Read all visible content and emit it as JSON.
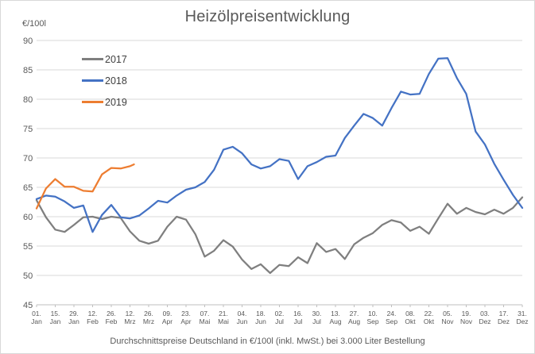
{
  "chart_data": {
    "type": "line",
    "title": "Heizölpreisentwicklung",
    "ylabel": "€/100l",
    "caption": "Durchschnittspreise Deutschland in €/100l (inkl. MwSt.) bei 3.000 Liter Bestellung",
    "ylim": [
      45,
      90
    ],
    "xlim": [
      1,
      365
    ],
    "yticks": [
      45,
      50,
      55,
      60,
      65,
      70,
      75,
      80,
      85,
      90
    ],
    "grid": "horizontal",
    "legend_position": "top-left-inside",
    "x_unit": "day_of_year",
    "theme": {
      "grid": "#D9D9D9",
      "axis": "#BFBFBF",
      "text": "#595959"
    },
    "xticks": [
      {
        "d": 1,
        "l1": "01.",
        "l2": "Jan"
      },
      {
        "d": 15,
        "l1": "15.",
        "l2": "Jan"
      },
      {
        "d": 29,
        "l1": "29.",
        "l2": "Jan"
      },
      {
        "d": 43,
        "l1": "12.",
        "l2": "Feb"
      },
      {
        "d": 57,
        "l1": "26.",
        "l2": "Feb"
      },
      {
        "d": 71,
        "l1": "12.",
        "l2": "Mrz"
      },
      {
        "d": 85,
        "l1": "26.",
        "l2": "Mrz"
      },
      {
        "d": 99,
        "l1": "09.",
        "l2": "Apr"
      },
      {
        "d": 113,
        "l1": "23.",
        "l2": "Apr"
      },
      {
        "d": 127,
        "l1": "07.",
        "l2": "Mai"
      },
      {
        "d": 141,
        "l1": "21.",
        "l2": "Mai"
      },
      {
        "d": 155,
        "l1": "04.",
        "l2": "Jun"
      },
      {
        "d": 169,
        "l1": "18.",
        "l2": "Jun"
      },
      {
        "d": 183,
        "l1": "02.",
        "l2": "Jul"
      },
      {
        "d": 197,
        "l1": "16.",
        "l2": "Jul"
      },
      {
        "d": 211,
        "l1": "30.",
        "l2": "Jul"
      },
      {
        "d": 225,
        "l1": "13.",
        "l2": "Aug"
      },
      {
        "d": 239,
        "l1": "27.",
        "l2": "Aug"
      },
      {
        "d": 253,
        "l1": "10.",
        "l2": "Sep"
      },
      {
        "d": 267,
        "l1": "24.",
        "l2": "Sep"
      },
      {
        "d": 281,
        "l1": "08.",
        "l2": "Okt"
      },
      {
        "d": 295,
        "l1": "22.",
        "l2": "Okt"
      },
      {
        "d": 309,
        "l1": "05.",
        "l2": "Nov"
      },
      {
        "d": 323,
        "l1": "19.",
        "l2": "Nov"
      },
      {
        "d": 337,
        "l1": "03.",
        "l2": "Dez"
      },
      {
        "d": 351,
        "l1": "17.",
        "l2": "Dez"
      },
      {
        "d": 365,
        "l1": "31.",
        "l2": "Dez"
      }
    ],
    "series": [
      {
        "name": "2017",
        "color": "#7F7F7F",
        "x": [
          1,
          8,
          15,
          22,
          29,
          36,
          43,
          50,
          57,
          64,
          71,
          78,
          85,
          92,
          99,
          106,
          113,
          120,
          127,
          134,
          141,
          148,
          155,
          162,
          169,
          176,
          183,
          190,
          197,
          204,
          211,
          218,
          225,
          232,
          239,
          246,
          253,
          260,
          267,
          274,
          281,
          288,
          295,
          302,
          309,
          316,
          323,
          330,
          337,
          344,
          351,
          358,
          365
        ],
        "values": [
          62.8,
          59.9,
          57.8,
          57.4,
          58.6,
          59.9,
          60.0,
          59.6,
          60.0,
          59.8,
          57.5,
          55.9,
          55.4,
          55.9,
          58.3,
          60.0,
          59.5,
          57.0,
          53.2,
          54.2,
          56.0,
          54.9,
          52.7,
          51.1,
          51.9,
          50.4,
          51.8,
          51.6,
          53.1,
          52.1,
          55.5,
          54.0,
          54.5,
          52.8,
          55.3,
          56.4,
          57.2,
          58.6,
          59.4,
          59.0,
          57.6,
          58.3,
          57.1,
          59.7,
          62.2,
          60.5,
          61.5,
          60.8,
          60.4,
          61.2,
          60.5,
          61.5,
          63.3
        ]
      },
      {
        "name": "2018",
        "color": "#4472C4",
        "x": [
          1,
          8,
          15,
          22,
          29,
          36,
          43,
          50,
          57,
          64,
          71,
          78,
          85,
          92,
          99,
          106,
          113,
          120,
          127,
          134,
          141,
          148,
          155,
          162,
          169,
          176,
          183,
          190,
          197,
          204,
          211,
          218,
          225,
          232,
          239,
          246,
          253,
          260,
          267,
          274,
          281,
          288,
          295,
          302,
          309,
          316,
          323,
          330,
          337,
          344,
          351,
          358,
          365
        ],
        "values": [
          63.0,
          63.6,
          63.4,
          62.6,
          61.5,
          61.9,
          57.4,
          60.3,
          62.0,
          59.9,
          59.7,
          60.2,
          61.4,
          62.7,
          62.4,
          63.6,
          64.6,
          65.0,
          65.9,
          68.0,
          71.4,
          71.9,
          70.8,
          68.9,
          68.2,
          68.6,
          69.8,
          69.5,
          66.4,
          68.6,
          69.3,
          70.2,
          70.4,
          73.4,
          75.5,
          77.5,
          76.8,
          75.5,
          78.5,
          81.3,
          80.8,
          80.9,
          84.3,
          86.9,
          87.0,
          83.6,
          80.9,
          74.5,
          72.3,
          69.0,
          66.3,
          63.7,
          61.5
        ]
      },
      {
        "name": "2019",
        "color": "#ED7D31",
        "x": [
          1,
          8,
          15,
          22,
          29,
          36,
          43,
          50,
          57,
          64,
          71,
          74
        ],
        "values": [
          61.4,
          64.8,
          66.4,
          65.1,
          65.1,
          64.4,
          64.3,
          67.2,
          68.3,
          68.2,
          68.6,
          68.9
        ]
      }
    ]
  }
}
